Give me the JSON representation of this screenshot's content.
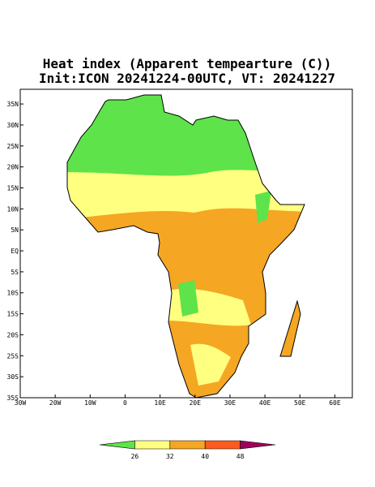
{
  "title": "Heat index (Apparent tempearture (C))",
  "subtitle": "Init:ICON 20241224-00UTC, VT: 20241227",
  "map": {
    "lonlim": [
      -30,
      65
    ],
    "latlim": [
      -35,
      38.5
    ],
    "lon_ticks": [
      {
        "value": -30,
        "label": "30W"
      },
      {
        "value": -20,
        "label": "20W"
      },
      {
        "value": -10,
        "label": "10W"
      },
      0,
      {
        "value": 10,
        "label": "10E"
      },
      {
        "value": 20,
        "label": "20E"
      },
      {
        "value": 30,
        "label": "30E"
      },
      {
        "value": 40,
        "label": "40E"
      },
      {
        "value": 50,
        "label": "50E"
      },
      {
        "value": 60,
        "label": "60E"
      }
    ],
    "lat_ticks": [
      {
        "value": 35,
        "label": "35N"
      },
      {
        "value": 30,
        "label": "30N"
      },
      {
        "value": 25,
        "label": "25N"
      },
      {
        "value": 20,
        "label": "20N"
      },
      {
        "value": 15,
        "label": "15N"
      },
      {
        "value": 10,
        "label": "10N"
      },
      {
        "value": 5,
        "label": "5N"
      },
      {
        "value": 0,
        "label": "EQ"
      },
      {
        "value": -5,
        "label": "5S"
      },
      {
        "value": -10,
        "label": "10S"
      },
      {
        "value": -15,
        "label": "15S"
      },
      {
        "value": -20,
        "label": "20S"
      },
      {
        "value": -25,
        "label": "25S"
      },
      {
        "value": -30,
        "label": "30S"
      },
      {
        "value": -35,
        "label": "35S"
      }
    ]
  },
  "colorbar": {
    "levels": [
      26,
      32,
      40,
      48
    ],
    "colors": [
      "#5ee34a",
      "#ffff80",
      "#f5a623",
      "#ff5a1e",
      "#a0005a"
    ]
  }
}
